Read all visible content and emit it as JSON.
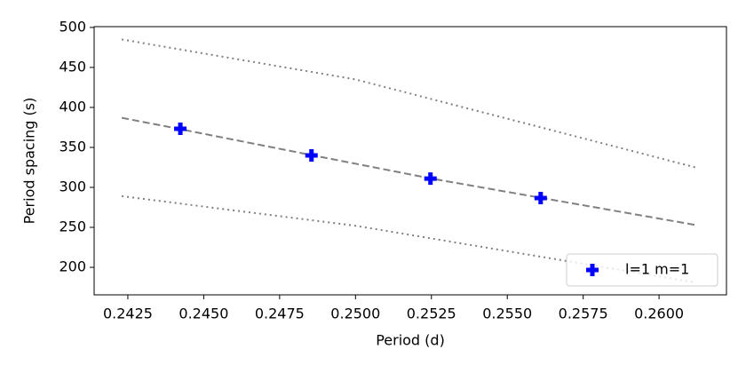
{
  "chart_data": {
    "type": "line",
    "xlabel": "Period (d)",
    "ylabel": "Period spacing (s)",
    "xlim": [
      0.24139,
      0.26222
    ],
    "ylim": [
      165.6,
      501
    ],
    "xticks": [
      0.2425,
      {
        "value": 0.245,
        "label": "0.2450"
      },
      0.2475,
      {
        "value": 0.25,
        "label": "0.2500"
      },
      0.2525,
      {
        "value": 0.255,
        "label": "0.2550"
      },
      0.2575,
      {
        "value": 0.26,
        "label": "0.2600"
      }
    ],
    "yticks": [
      200,
      250,
      300,
      350,
      400,
      450,
      500
    ],
    "legend": "lower right",
    "series": [
      {
        "x": [
          0.2423,
          0.2442,
          0.2486,
          0.2525,
          0.2561,
          0.2612
        ],
        "values": [
          387,
          373,
          340,
          311,
          287,
          253
        ],
        "color": "#808080",
        "style": "dashed"
      },
      {
        "x": [
          0.2423,
          0.25,
          0.2612
        ],
        "values": [
          485,
          435,
          325
        ],
        "color": "#808080",
        "style": "dotted"
      },
      {
        "x": [
          0.2423,
          0.25,
          0.2612
        ],
        "values": [
          289,
          252,
          181
        ],
        "color": "#808080",
        "style": "dotted"
      },
      {
        "name": "l=1 m=1",
        "x": [
          0.24423,
          0.24855,
          0.25247,
          0.2561
        ],
        "values": [
          373.3,
          340,
          311,
          286.7
        ],
        "color": "#0000ff",
        "style": "plus"
      }
    ]
  }
}
